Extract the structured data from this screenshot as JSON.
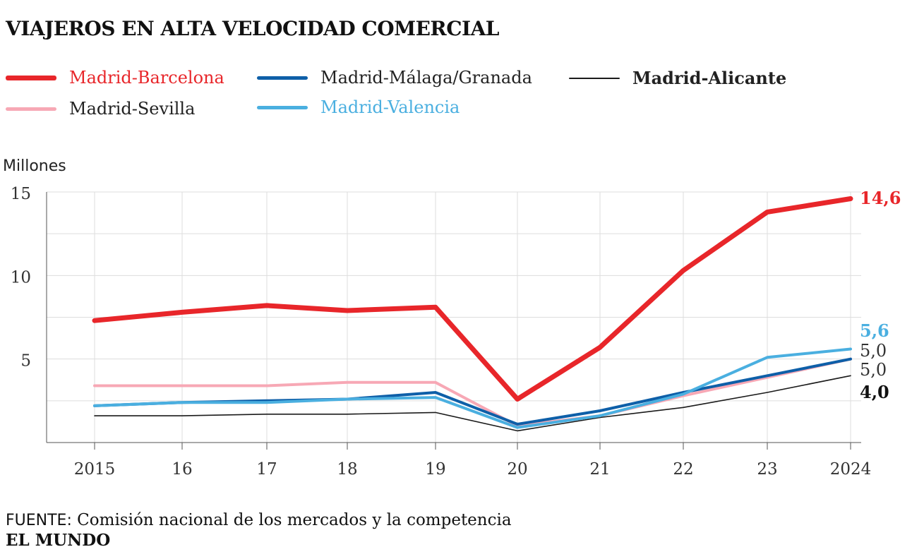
{
  "title": "VIAJEROS EN ALTA VELOCIDAD COMERCIAL",
  "footer": {
    "source_prefix": "FUENTE:",
    "source_text": " Comisión nacional de los mercados y la competencia",
    "brand": "EL MUNDO"
  },
  "chart_data": {
    "type": "line",
    "ylabel": "Millones",
    "xlabel": "",
    "x": [
      2015,
      2016,
      2017,
      2018,
      2019,
      2020,
      2021,
      2022,
      2023,
      2024
    ],
    "xtick_labels": [
      "2015",
      "16",
      "17",
      "18",
      "19",
      "20",
      "21",
      "22",
      "23",
      "2024"
    ],
    "ylim": [
      0,
      15
    ],
    "yticks": [
      0,
      2.5,
      5,
      7.5,
      10,
      12.5,
      15
    ],
    "ytick_labels": [
      "",
      "",
      "5",
      "",
      "10",
      "",
      "15"
    ],
    "grid": true,
    "legend_position": "top",
    "series": [
      {
        "name": "Madrid-Barcelona",
        "color": "#e8262a",
        "label_bold": false,
        "values": [
          7.3,
          7.8,
          8.2,
          7.9,
          8.1,
          2.6,
          5.7,
          10.3,
          13.8,
          14.6
        ],
        "end_label": "14,6"
      },
      {
        "name": "Madrid-Sevilla",
        "color": "#f7a8b5",
        "label_bold": false,
        "values": [
          3.4,
          3.4,
          3.4,
          3.6,
          3.6,
          1.0,
          1.6,
          2.8,
          3.9,
          5.0
        ],
        "end_label": "5,0"
      },
      {
        "name": "Madrid-Málaga/Granada",
        "color": "#0e5fa8",
        "label_bold": false,
        "values": [
          2.2,
          2.4,
          2.5,
          2.6,
          3.0,
          1.1,
          1.9,
          3.0,
          4.0,
          5.0
        ],
        "end_label": "5,0"
      },
      {
        "name": "Madrid-Valencia",
        "color": "#4aafe0",
        "label_bold": false,
        "values": [
          2.2,
          2.4,
          2.4,
          2.6,
          2.7,
          0.9,
          1.6,
          2.9,
          5.1,
          5.6
        ],
        "end_label": "5,6"
      },
      {
        "name": "Madrid-Alicante",
        "color": "#1a1a1a",
        "label_bold": true,
        "values": [
          1.6,
          1.6,
          1.7,
          1.7,
          1.8,
          0.7,
          1.5,
          2.1,
          3.0,
          4.0
        ],
        "end_label": "4,0"
      }
    ]
  }
}
